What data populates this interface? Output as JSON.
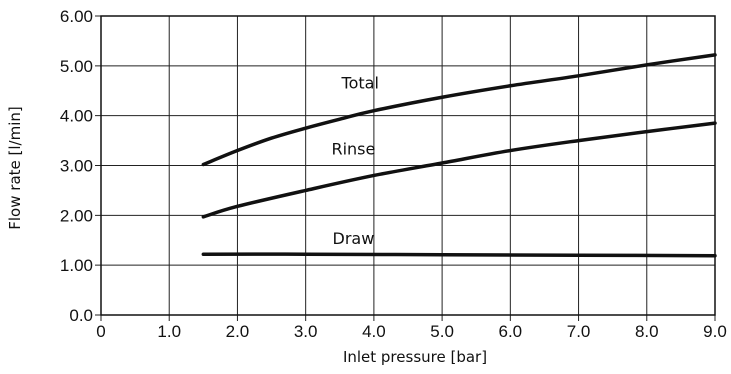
{
  "chart_data": {
    "type": "line",
    "title": "",
    "xlabel": "Inlet pressure [bar]",
    "ylabel": "Flow rate [l/min]",
    "xlim": [
      0,
      9
    ],
    "ylim": [
      0,
      6
    ],
    "grid": true,
    "x_tick_labels": [
      "0",
      "1.0",
      "2.0",
      "3.0",
      "4.0",
      "5.0",
      "6.0",
      "7.0",
      "8.0",
      "9.0"
    ],
    "y_tick_labels": [
      "0.0",
      "1.00",
      "2.00",
      "3.00",
      "4.00",
      "5.00",
      "6.00"
    ],
    "series": [
      {
        "name": "Total",
        "x": [
          1.5,
          2.0,
          2.5,
          3.0,
          3.5,
          4.0,
          5.0,
          6.0,
          7.0,
          8.0,
          9.0
        ],
        "values": [
          3.02,
          3.3,
          3.55,
          3.75,
          3.93,
          4.1,
          4.37,
          4.6,
          4.8,
          5.02,
          5.22
        ]
      },
      {
        "name": "Rinse",
        "x": [
          1.5,
          2.0,
          3.0,
          4.0,
          5.0,
          6.0,
          7.0,
          8.0,
          9.0
        ],
        "values": [
          1.97,
          2.18,
          2.5,
          2.8,
          3.05,
          3.3,
          3.5,
          3.68,
          3.85
        ]
      },
      {
        "name": "Draw",
        "x": [
          1.5,
          3.0,
          5.0,
          7.0,
          9.0
        ],
        "values": [
          1.22,
          1.22,
          1.21,
          1.2,
          1.19
        ]
      }
    ]
  }
}
